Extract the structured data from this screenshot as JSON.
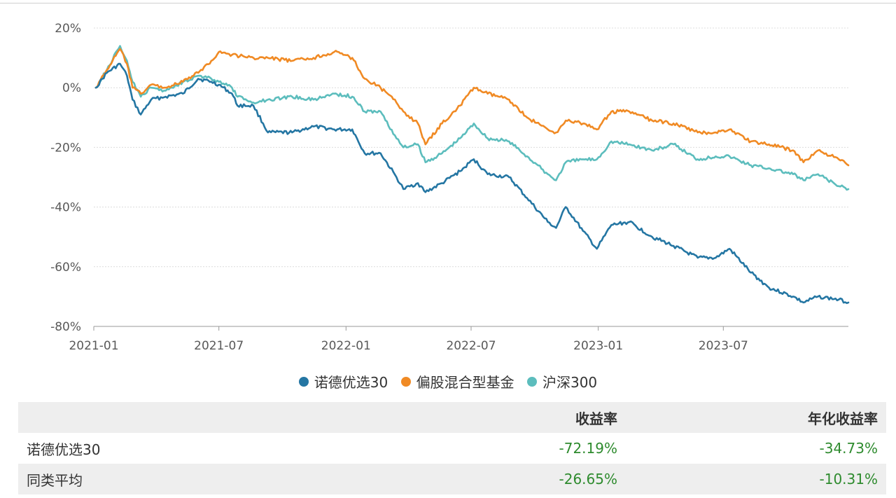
{
  "chart_data": {
    "type": "line",
    "ylim": [
      -80,
      20
    ],
    "y_ticks": [
      "20%",
      "0%",
      "-20%",
      "-40%",
      "-60%",
      "-80%"
    ],
    "y_tick_values": [
      20,
      0,
      -20,
      -40,
      -60,
      -80
    ],
    "x_ticks": [
      "2021-01",
      "2021-07",
      "2022-01",
      "2022-07",
      "2023-01",
      "2023-07"
    ],
    "x_range": [
      "2021-01",
      "2023-12"
    ],
    "grid": "horizontal-dotted",
    "legend_position": "bottom-center",
    "series": [
      {
        "name": "诺德优选30",
        "color": "#2476a3",
        "points": [
          [
            "2021-01-04",
            0
          ],
          [
            "2021-01-20",
            5
          ],
          [
            "2021-02-08",
            8
          ],
          [
            "2021-02-18",
            4
          ],
          [
            "2021-02-26",
            -4
          ],
          [
            "2021-03-10",
            -9
          ],
          [
            "2021-03-25",
            -4
          ],
          [
            "2021-04-15",
            -3
          ],
          [
            "2021-05-10",
            -2
          ],
          [
            "2021-06-01",
            3
          ],
          [
            "2021-06-20",
            2
          ],
          [
            "2021-07-01",
            1
          ],
          [
            "2021-07-20",
            -2
          ],
          [
            "2021-07-28",
            -6
          ],
          [
            "2021-08-20",
            -6
          ],
          [
            "2021-09-10",
            -15
          ],
          [
            "2021-10-15",
            -15
          ],
          [
            "2021-11-15",
            -13
          ],
          [
            "2021-12-15",
            -14
          ],
          [
            "2022-01-10",
            -14
          ],
          [
            "2022-01-28",
            -22
          ],
          [
            "2022-02-20",
            -22
          ],
          [
            "2022-03-15",
            -30
          ],
          [
            "2022-03-25",
            -34
          ],
          [
            "2022-04-15",
            -32
          ],
          [
            "2022-04-26",
            -35
          ],
          [
            "2022-05-20",
            -32
          ],
          [
            "2022-06-15",
            -28
          ],
          [
            "2022-07-05",
            -24
          ],
          [
            "2022-07-25",
            -29
          ],
          [
            "2022-08-25",
            -30
          ],
          [
            "2022-09-20",
            -37
          ],
          [
            "2022-10-20",
            -45
          ],
          [
            "2022-11-01",
            -47
          ],
          [
            "2022-11-15",
            -40
          ],
          [
            "2022-12-10",
            -48
          ],
          [
            "2022-12-30",
            -54
          ],
          [
            "2023-01-20",
            -46
          ],
          [
            "2023-02-15",
            -45
          ],
          [
            "2023-03-20",
            -50
          ],
          [
            "2023-04-20",
            -53
          ],
          [
            "2023-05-25",
            -57
          ],
          [
            "2023-06-20",
            -57
          ],
          [
            "2023-07-10",
            -54
          ],
          [
            "2023-08-10",
            -62
          ],
          [
            "2023-09-05",
            -67
          ],
          [
            "2023-10-10",
            -70
          ],
          [
            "2023-10-25",
            -72
          ],
          [
            "2023-11-15",
            -70
          ],
          [
            "2023-12-15",
            -71
          ],
          [
            "2023-12-29",
            -72
          ]
        ]
      },
      {
        "name": "偏股混合型基金",
        "color": "#f08a24",
        "points": [
          [
            "2021-01-04",
            0
          ],
          [
            "2021-01-20",
            6
          ],
          [
            "2021-02-08",
            13
          ],
          [
            "2021-02-18",
            8
          ],
          [
            "2021-02-26",
            0
          ],
          [
            "2021-03-10",
            -2
          ],
          [
            "2021-03-25",
            1
          ],
          [
            "2021-04-15",
            0
          ],
          [
            "2021-05-10",
            2
          ],
          [
            "2021-06-01",
            5
          ],
          [
            "2021-06-20",
            9
          ],
          [
            "2021-07-01",
            12
          ],
          [
            "2021-07-20",
            11
          ],
          [
            "2021-08-20",
            10
          ],
          [
            "2021-09-10",
            10
          ],
          [
            "2021-10-15",
            9
          ],
          [
            "2021-11-15",
            10
          ],
          [
            "2021-12-15",
            12
          ],
          [
            "2022-01-10",
            10
          ],
          [
            "2022-01-28",
            3
          ],
          [
            "2022-02-20",
            0
          ],
          [
            "2022-03-15",
            -5
          ],
          [
            "2022-03-25",
            -8
          ],
          [
            "2022-04-15",
            -12
          ],
          [
            "2022-04-26",
            -19
          ],
          [
            "2022-05-20",
            -12
          ],
          [
            "2022-06-15",
            -6
          ],
          [
            "2022-07-05",
            0
          ],
          [
            "2022-07-25",
            -2
          ],
          [
            "2022-08-25",
            -4
          ],
          [
            "2022-09-20",
            -10
          ],
          [
            "2022-10-20",
            -14
          ],
          [
            "2022-11-01",
            -15
          ],
          [
            "2022-11-15",
            -11
          ],
          [
            "2022-12-10",
            -12
          ],
          [
            "2022-12-30",
            -14
          ],
          [
            "2023-01-20",
            -8
          ],
          [
            "2023-02-15",
            -8
          ],
          [
            "2023-03-20",
            -11
          ],
          [
            "2023-04-20",
            -12
          ],
          [
            "2023-05-25",
            -15
          ],
          [
            "2023-06-20",
            -15
          ],
          [
            "2023-07-10",
            -14
          ],
          [
            "2023-08-10",
            -18
          ],
          [
            "2023-09-05",
            -19
          ],
          [
            "2023-10-10",
            -21
          ],
          [
            "2023-10-25",
            -25
          ],
          [
            "2023-11-15",
            -21
          ],
          [
            "2023-12-15",
            -24
          ],
          [
            "2023-12-29",
            -26
          ]
        ]
      },
      {
        "name": "沪深300",
        "color": "#5cbdbd",
        "points": [
          [
            "2021-01-04",
            0
          ],
          [
            "2021-01-20",
            6
          ],
          [
            "2021-02-08",
            14
          ],
          [
            "2021-02-18",
            9
          ],
          [
            "2021-02-26",
            2
          ],
          [
            "2021-03-10",
            -3
          ],
          [
            "2021-03-25",
            0
          ],
          [
            "2021-04-15",
            -1
          ],
          [
            "2021-05-10",
            2
          ],
          [
            "2021-06-01",
            4
          ],
          [
            "2021-06-20",
            3
          ],
          [
            "2021-07-01",
            2
          ],
          [
            "2021-07-20",
            0
          ],
          [
            "2021-07-28",
            -3
          ],
          [
            "2021-08-20",
            -5
          ],
          [
            "2021-09-10",
            -4
          ],
          [
            "2021-10-15",
            -3
          ],
          [
            "2021-11-15",
            -4
          ],
          [
            "2021-12-15",
            -2
          ],
          [
            "2022-01-10",
            -3
          ],
          [
            "2022-01-28",
            -8
          ],
          [
            "2022-02-20",
            -8
          ],
          [
            "2022-03-15",
            -17
          ],
          [
            "2022-03-25",
            -20
          ],
          [
            "2022-04-15",
            -19
          ],
          [
            "2022-04-26",
            -25
          ],
          [
            "2022-05-20",
            -22
          ],
          [
            "2022-06-15",
            -17
          ],
          [
            "2022-07-05",
            -12
          ],
          [
            "2022-07-25",
            -17
          ],
          [
            "2022-08-25",
            -18
          ],
          [
            "2022-09-20",
            -23
          ],
          [
            "2022-10-20",
            -29
          ],
          [
            "2022-11-01",
            -31
          ],
          [
            "2022-11-15",
            -25
          ],
          [
            "2022-12-10",
            -24
          ],
          [
            "2022-12-30",
            -24
          ],
          [
            "2023-01-20",
            -18
          ],
          [
            "2023-02-15",
            -19
          ],
          [
            "2023-03-20",
            -21
          ],
          [
            "2023-04-20",
            -19
          ],
          [
            "2023-05-25",
            -24
          ],
          [
            "2023-06-20",
            -23
          ],
          [
            "2023-07-10",
            -23
          ],
          [
            "2023-08-10",
            -26
          ],
          [
            "2023-09-05",
            -27
          ],
          [
            "2023-10-10",
            -29
          ],
          [
            "2023-10-25",
            -31
          ],
          [
            "2023-11-15",
            -29
          ],
          [
            "2023-12-15",
            -33
          ],
          [
            "2023-12-29",
            -34
          ]
        ]
      }
    ]
  },
  "legend": {
    "items": [
      {
        "label": "诺德优选30",
        "color": "#2476a3"
      },
      {
        "label": "偏股混合型基金",
        "color": "#f08a24"
      },
      {
        "label": "沪深300",
        "color": "#5cbdbd"
      }
    ]
  },
  "table": {
    "headers": [
      "",
      "收益率",
      "年化收益率"
    ],
    "rows": [
      {
        "name": "诺德优选30",
        "return": "-72.19%",
        "annualized": "-34.73%"
      },
      {
        "name": "同类平均",
        "return": "-26.65%",
        "annualized": "-10.31%"
      }
    ],
    "value_color": "#2e8b2e"
  }
}
